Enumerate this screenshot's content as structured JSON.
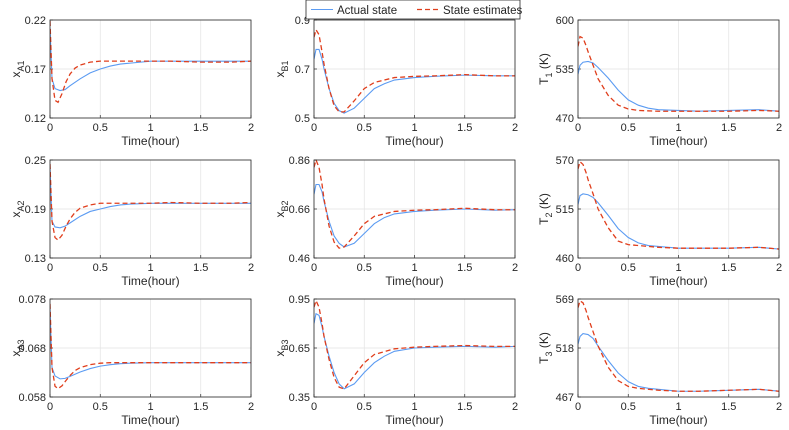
{
  "legend": {
    "position": "top-center",
    "actual_label": "Actual state",
    "estimate_label": "State estimates"
  },
  "colors": {
    "actual": "#5b9bf2",
    "estimate": "#e03e1c"
  },
  "chart_data": [
    {
      "type": "line",
      "id": "xA1",
      "ylabel_main": "x",
      "ylabel_sub": "A1",
      "xlabel": "Time(hour)",
      "xlim": [
        0,
        2
      ],
      "xticks": [
        "0",
        "0.5",
        "1",
        "1.5",
        "2"
      ],
      "ylim": [
        0.12,
        0.22
      ],
      "yticks": [
        "0.12",
        "0.17",
        "0.22"
      ],
      "series": [
        {
          "name": "Actual state",
          "x": [
            0,
            0.02,
            0.05,
            0.1,
            0.15,
            0.2,
            0.3,
            0.4,
            0.5,
            0.6,
            0.7,
            0.8,
            1.0,
            1.2,
            1.5,
            1.8,
            2.0
          ],
          "y": [
            0.212,
            0.16,
            0.15,
            0.148,
            0.149,
            0.153,
            0.16,
            0.166,
            0.17,
            0.173,
            0.175,
            0.176,
            0.178,
            0.178,
            0.178,
            0.178,
            0.178
          ]
        },
        {
          "name": "State estimates",
          "x": [
            0,
            0.02,
            0.05,
            0.08,
            0.12,
            0.16,
            0.2,
            0.25,
            0.3,
            0.4,
            0.5,
            0.6,
            0.8,
            1.0,
            1.2,
            1.5,
            1.8,
            2.0
          ],
          "y": [
            0.219,
            0.16,
            0.138,
            0.136,
            0.145,
            0.157,
            0.165,
            0.171,
            0.174,
            0.177,
            0.178,
            0.178,
            0.178,
            0.178,
            0.178,
            0.177,
            0.177,
            0.178
          ]
        }
      ]
    },
    {
      "type": "line",
      "id": "xB1",
      "ylabel_main": "x",
      "ylabel_sub": "B1",
      "xlabel": "Time(hour)",
      "xlim": [
        0,
        2
      ],
      "xticks": [
        "0",
        "0.5",
        "1",
        "1.5",
        "2"
      ],
      "ylim": [
        0.5,
        0.9
      ],
      "yticks": [
        "0.5",
        "0.7",
        "0.9"
      ],
      "series": [
        {
          "name": "Actual state",
          "x": [
            0,
            0.02,
            0.05,
            0.08,
            0.1,
            0.15,
            0.2,
            0.25,
            0.3,
            0.4,
            0.5,
            0.6,
            0.7,
            0.8,
            1.0,
            1.2,
            1.5,
            1.8,
            2.0
          ],
          "y": [
            0.74,
            0.78,
            0.78,
            0.74,
            0.7,
            0.62,
            0.56,
            0.53,
            0.52,
            0.54,
            0.58,
            0.62,
            0.64,
            0.655,
            0.665,
            0.67,
            0.675,
            0.672,
            0.672
          ]
        },
        {
          "name": "State estimates",
          "x": [
            0,
            0.02,
            0.05,
            0.08,
            0.1,
            0.15,
            0.2,
            0.25,
            0.3,
            0.4,
            0.5,
            0.6,
            0.8,
            1.0,
            1.2,
            1.5,
            1.8,
            2.0
          ],
          "y": [
            0.83,
            0.86,
            0.84,
            0.77,
            0.72,
            0.62,
            0.55,
            0.525,
            0.525,
            0.57,
            0.62,
            0.645,
            0.665,
            0.67,
            0.672,
            0.677,
            0.672,
            0.672
          ]
        }
      ]
    },
    {
      "type": "line",
      "id": "T1",
      "ylabel_main": "T",
      "ylabel_sub": "1",
      "ylabel_tail": " (K)",
      "xlabel": "Time(hour)",
      "xlim": [
        0,
        2
      ],
      "xticks": [
        "0",
        "0.5",
        "1",
        "1.5",
        "2"
      ],
      "ylim": [
        470,
        600
      ],
      "yticks": [
        "470",
        "535",
        "600"
      ],
      "series": [
        {
          "name": "Actual state",
          "x": [
            0,
            0.02,
            0.05,
            0.1,
            0.15,
            0.2,
            0.3,
            0.4,
            0.5,
            0.6,
            0.7,
            0.8,
            1.0,
            1.2,
            1.5,
            1.8,
            2.0
          ],
          "y": [
            528,
            540,
            544,
            545,
            543,
            537,
            523,
            507,
            494,
            487,
            483,
            481,
            480,
            479,
            480,
            481,
            479
          ]
        },
        {
          "name": "State estimates",
          "x": [
            0,
            0.02,
            0.05,
            0.08,
            0.1,
            0.15,
            0.2,
            0.3,
            0.4,
            0.5,
            0.6,
            0.8,
            1.0,
            1.2,
            1.5,
            1.8,
            2.0
          ],
          "y": [
            565,
            578,
            576,
            566,
            558,
            540,
            522,
            500,
            487,
            482,
            480,
            479,
            479,
            479,
            479,
            480,
            479
          ]
        }
      ]
    },
    {
      "type": "line",
      "id": "xA2",
      "ylabel_main": "x",
      "ylabel_sub": "A2",
      "xlabel": "Time(hour)",
      "xlim": [
        0,
        2
      ],
      "xticks": [
        "0",
        "0.5",
        "1",
        "1.5",
        "2"
      ],
      "ylim": [
        0.13,
        0.25
      ],
      "yticks": [
        "0.13",
        "0.19",
        "0.25"
      ],
      "series": [
        {
          "name": "Actual state",
          "x": [
            0,
            0.02,
            0.05,
            0.1,
            0.15,
            0.2,
            0.3,
            0.4,
            0.5,
            0.6,
            0.7,
            0.8,
            1.0,
            1.2,
            1.5,
            1.8,
            2.0
          ],
          "y": [
            0.24,
            0.175,
            0.168,
            0.167,
            0.169,
            0.173,
            0.181,
            0.187,
            0.19,
            0.193,
            0.195,
            0.196,
            0.197,
            0.197,
            0.197,
            0.197,
            0.197
          ]
        },
        {
          "name": "State estimates",
          "x": [
            0,
            0.02,
            0.05,
            0.08,
            0.12,
            0.16,
            0.2,
            0.25,
            0.3,
            0.4,
            0.5,
            0.6,
            0.8,
            1.0,
            1.2,
            1.5,
            1.8,
            2.0
          ],
          "y": [
            0.245,
            0.175,
            0.155,
            0.152,
            0.158,
            0.169,
            0.178,
            0.186,
            0.191,
            0.195,
            0.197,
            0.197,
            0.197,
            0.197,
            0.198,
            0.197,
            0.197,
            0.198
          ]
        }
      ]
    },
    {
      "type": "line",
      "id": "xB2",
      "ylabel_main": "x",
      "ylabel_sub": "B2",
      "xlabel": "Time(hour)",
      "xlim": [
        0,
        2
      ],
      "xticks": [
        "0",
        "0.5",
        "1",
        "1.5",
        "2"
      ],
      "ylim": [
        0.46,
        0.86
      ],
      "yticks": [
        "0.46",
        "0.66",
        "0.86"
      ],
      "series": [
        {
          "name": "Actual state",
          "x": [
            0,
            0.02,
            0.05,
            0.08,
            0.1,
            0.15,
            0.2,
            0.25,
            0.3,
            0.4,
            0.5,
            0.6,
            0.7,
            0.8,
            1.0,
            1.2,
            1.5,
            1.8,
            2.0
          ],
          "y": [
            0.72,
            0.76,
            0.76,
            0.73,
            0.69,
            0.61,
            0.55,
            0.52,
            0.505,
            0.52,
            0.56,
            0.6,
            0.625,
            0.64,
            0.65,
            0.655,
            0.66,
            0.655,
            0.657
          ]
        },
        {
          "name": "State estimates",
          "x": [
            0,
            0.02,
            0.05,
            0.08,
            0.1,
            0.15,
            0.2,
            0.25,
            0.3,
            0.4,
            0.5,
            0.6,
            0.8,
            1.0,
            1.2,
            1.5,
            1.8,
            2.0
          ],
          "y": [
            0.83,
            0.86,
            0.83,
            0.76,
            0.7,
            0.59,
            0.525,
            0.5,
            0.505,
            0.55,
            0.6,
            0.63,
            0.65,
            0.655,
            0.657,
            0.663,
            0.657,
            0.657
          ]
        }
      ]
    },
    {
      "type": "line",
      "id": "T2",
      "ylabel_main": "T",
      "ylabel_sub": "2",
      "ylabel_tail": " (K)",
      "xlabel": "Time(hour)",
      "xlim": [
        0,
        2
      ],
      "xticks": [
        "0",
        "0.5",
        "1",
        "1.5",
        "2"
      ],
      "ylim": [
        460,
        570
      ],
      "yticks": [
        "460",
        "515",
        "570"
      ],
      "series": [
        {
          "name": "Actual state",
          "x": [
            0,
            0.02,
            0.05,
            0.1,
            0.15,
            0.2,
            0.3,
            0.4,
            0.5,
            0.6,
            0.7,
            0.8,
            1.0,
            1.2,
            1.5,
            1.8,
            2.0
          ],
          "y": [
            520,
            530,
            532,
            531,
            528,
            522,
            508,
            493,
            483,
            477,
            474,
            473,
            471,
            471,
            471,
            472,
            470
          ]
        },
        {
          "name": "State estimates",
          "x": [
            0,
            0.02,
            0.05,
            0.08,
            0.1,
            0.15,
            0.2,
            0.3,
            0.4,
            0.5,
            0.6,
            0.8,
            1.0,
            1.2,
            1.5,
            1.8,
            2.0
          ],
          "y": [
            560,
            568,
            565,
            556,
            548,
            532,
            515,
            494,
            479,
            475,
            474,
            472,
            471,
            471,
            471,
            472,
            470
          ]
        }
      ]
    },
    {
      "type": "line",
      "id": "xA3",
      "ylabel_main": "x",
      "ylabel_sub": "A3",
      "xlabel": "Time(hour)",
      "xlim": [
        0,
        2
      ],
      "xticks": [
        "0",
        "0.5",
        "1",
        "1.5",
        "2"
      ],
      "ylim": [
        0.058,
        0.078
      ],
      "yticks": [
        "0.058",
        "0.068",
        "0.078"
      ],
      "series": [
        {
          "name": "Actual state",
          "x": [
            0,
            0.02,
            0.05,
            0.1,
            0.15,
            0.2,
            0.3,
            0.4,
            0.5,
            0.6,
            0.7,
            0.8,
            1.0,
            1.2,
            1.5,
            1.8,
            2.0
          ],
          "y": [
            0.076,
            0.064,
            0.0623,
            0.0617,
            0.0618,
            0.0622,
            0.0631,
            0.0638,
            0.0643,
            0.0646,
            0.0648,
            0.0649,
            0.065,
            0.065,
            0.065,
            0.065,
            0.065
          ]
        },
        {
          "name": "State estimates",
          "x": [
            0,
            0.02,
            0.05,
            0.08,
            0.12,
            0.16,
            0.2,
            0.25,
            0.3,
            0.4,
            0.5,
            0.6,
            0.8,
            1.0,
            1.2,
            1.5,
            1.8,
            2.0
          ],
          "y": [
            0.077,
            0.064,
            0.0602,
            0.0597,
            0.0603,
            0.0614,
            0.0624,
            0.0634,
            0.064,
            0.0646,
            0.0649,
            0.065,
            0.065,
            0.065,
            0.065,
            0.065,
            0.065,
            0.065
          ]
        }
      ]
    },
    {
      "type": "line",
      "id": "xB3",
      "ylabel_main": "x",
      "ylabel_sub": "B3",
      "xlabel": "Time(hour)",
      "xlim": [
        0,
        2
      ],
      "xticks": [
        "0",
        "0.5",
        "1",
        "1.5",
        "2"
      ],
      "ylim": [
        0.35,
        0.95
      ],
      "yticks": [
        "0.35",
        "0.65",
        "0.95"
      ],
      "series": [
        {
          "name": "Actual state",
          "x": [
            0,
            0.02,
            0.05,
            0.08,
            0.1,
            0.15,
            0.2,
            0.25,
            0.3,
            0.4,
            0.5,
            0.6,
            0.7,
            0.8,
            1.0,
            1.2,
            1.5,
            1.8,
            2.0
          ],
          "y": [
            0.8,
            0.86,
            0.85,
            0.78,
            0.72,
            0.6,
            0.5,
            0.43,
            0.4,
            0.43,
            0.5,
            0.56,
            0.6,
            0.63,
            0.65,
            0.655,
            0.66,
            0.655,
            0.66
          ]
        },
        {
          "name": "State estimates",
          "x": [
            0,
            0.02,
            0.05,
            0.08,
            0.1,
            0.15,
            0.2,
            0.25,
            0.3,
            0.4,
            0.5,
            0.6,
            0.8,
            1.0,
            1.2,
            1.5,
            1.8,
            2.0
          ],
          "y": [
            0.9,
            0.94,
            0.9,
            0.8,
            0.72,
            0.58,
            0.47,
            0.41,
            0.4,
            0.48,
            0.56,
            0.61,
            0.645,
            0.655,
            0.66,
            0.665,
            0.66,
            0.66
          ]
        }
      ]
    },
    {
      "type": "line",
      "id": "T3",
      "ylabel_main": "T",
      "ylabel_sub": "3",
      "ylabel_tail": " (K)",
      "xlabel": "Time(hour)",
      "xlim": [
        0,
        2
      ],
      "xticks": [
        "0",
        "0.5",
        "1",
        "1.5",
        "2"
      ],
      "ylim": [
        467,
        569
      ],
      "yticks": [
        "467",
        "518",
        "569"
      ],
      "series": [
        {
          "name": "Actual state",
          "x": [
            0,
            0.02,
            0.05,
            0.1,
            0.15,
            0.2,
            0.3,
            0.4,
            0.5,
            0.6,
            0.7,
            0.8,
            1.0,
            1.2,
            1.5,
            1.8,
            2.0
          ],
          "y": [
            522,
            530,
            533,
            532,
            528,
            520,
            505,
            492,
            483,
            478,
            476,
            475,
            473,
            473,
            474,
            475,
            473
          ]
        },
        {
          "name": "State estimates",
          "x": [
            0,
            0.02,
            0.05,
            0.08,
            0.1,
            0.15,
            0.2,
            0.3,
            0.4,
            0.5,
            0.6,
            0.8,
            1.0,
            1.2,
            1.5,
            1.8,
            2.0
          ],
          "y": [
            560,
            567,
            565,
            557,
            550,
            535,
            520,
            498,
            484,
            478,
            476,
            474,
            473,
            473,
            474,
            475,
            473
          ]
        }
      ]
    }
  ]
}
